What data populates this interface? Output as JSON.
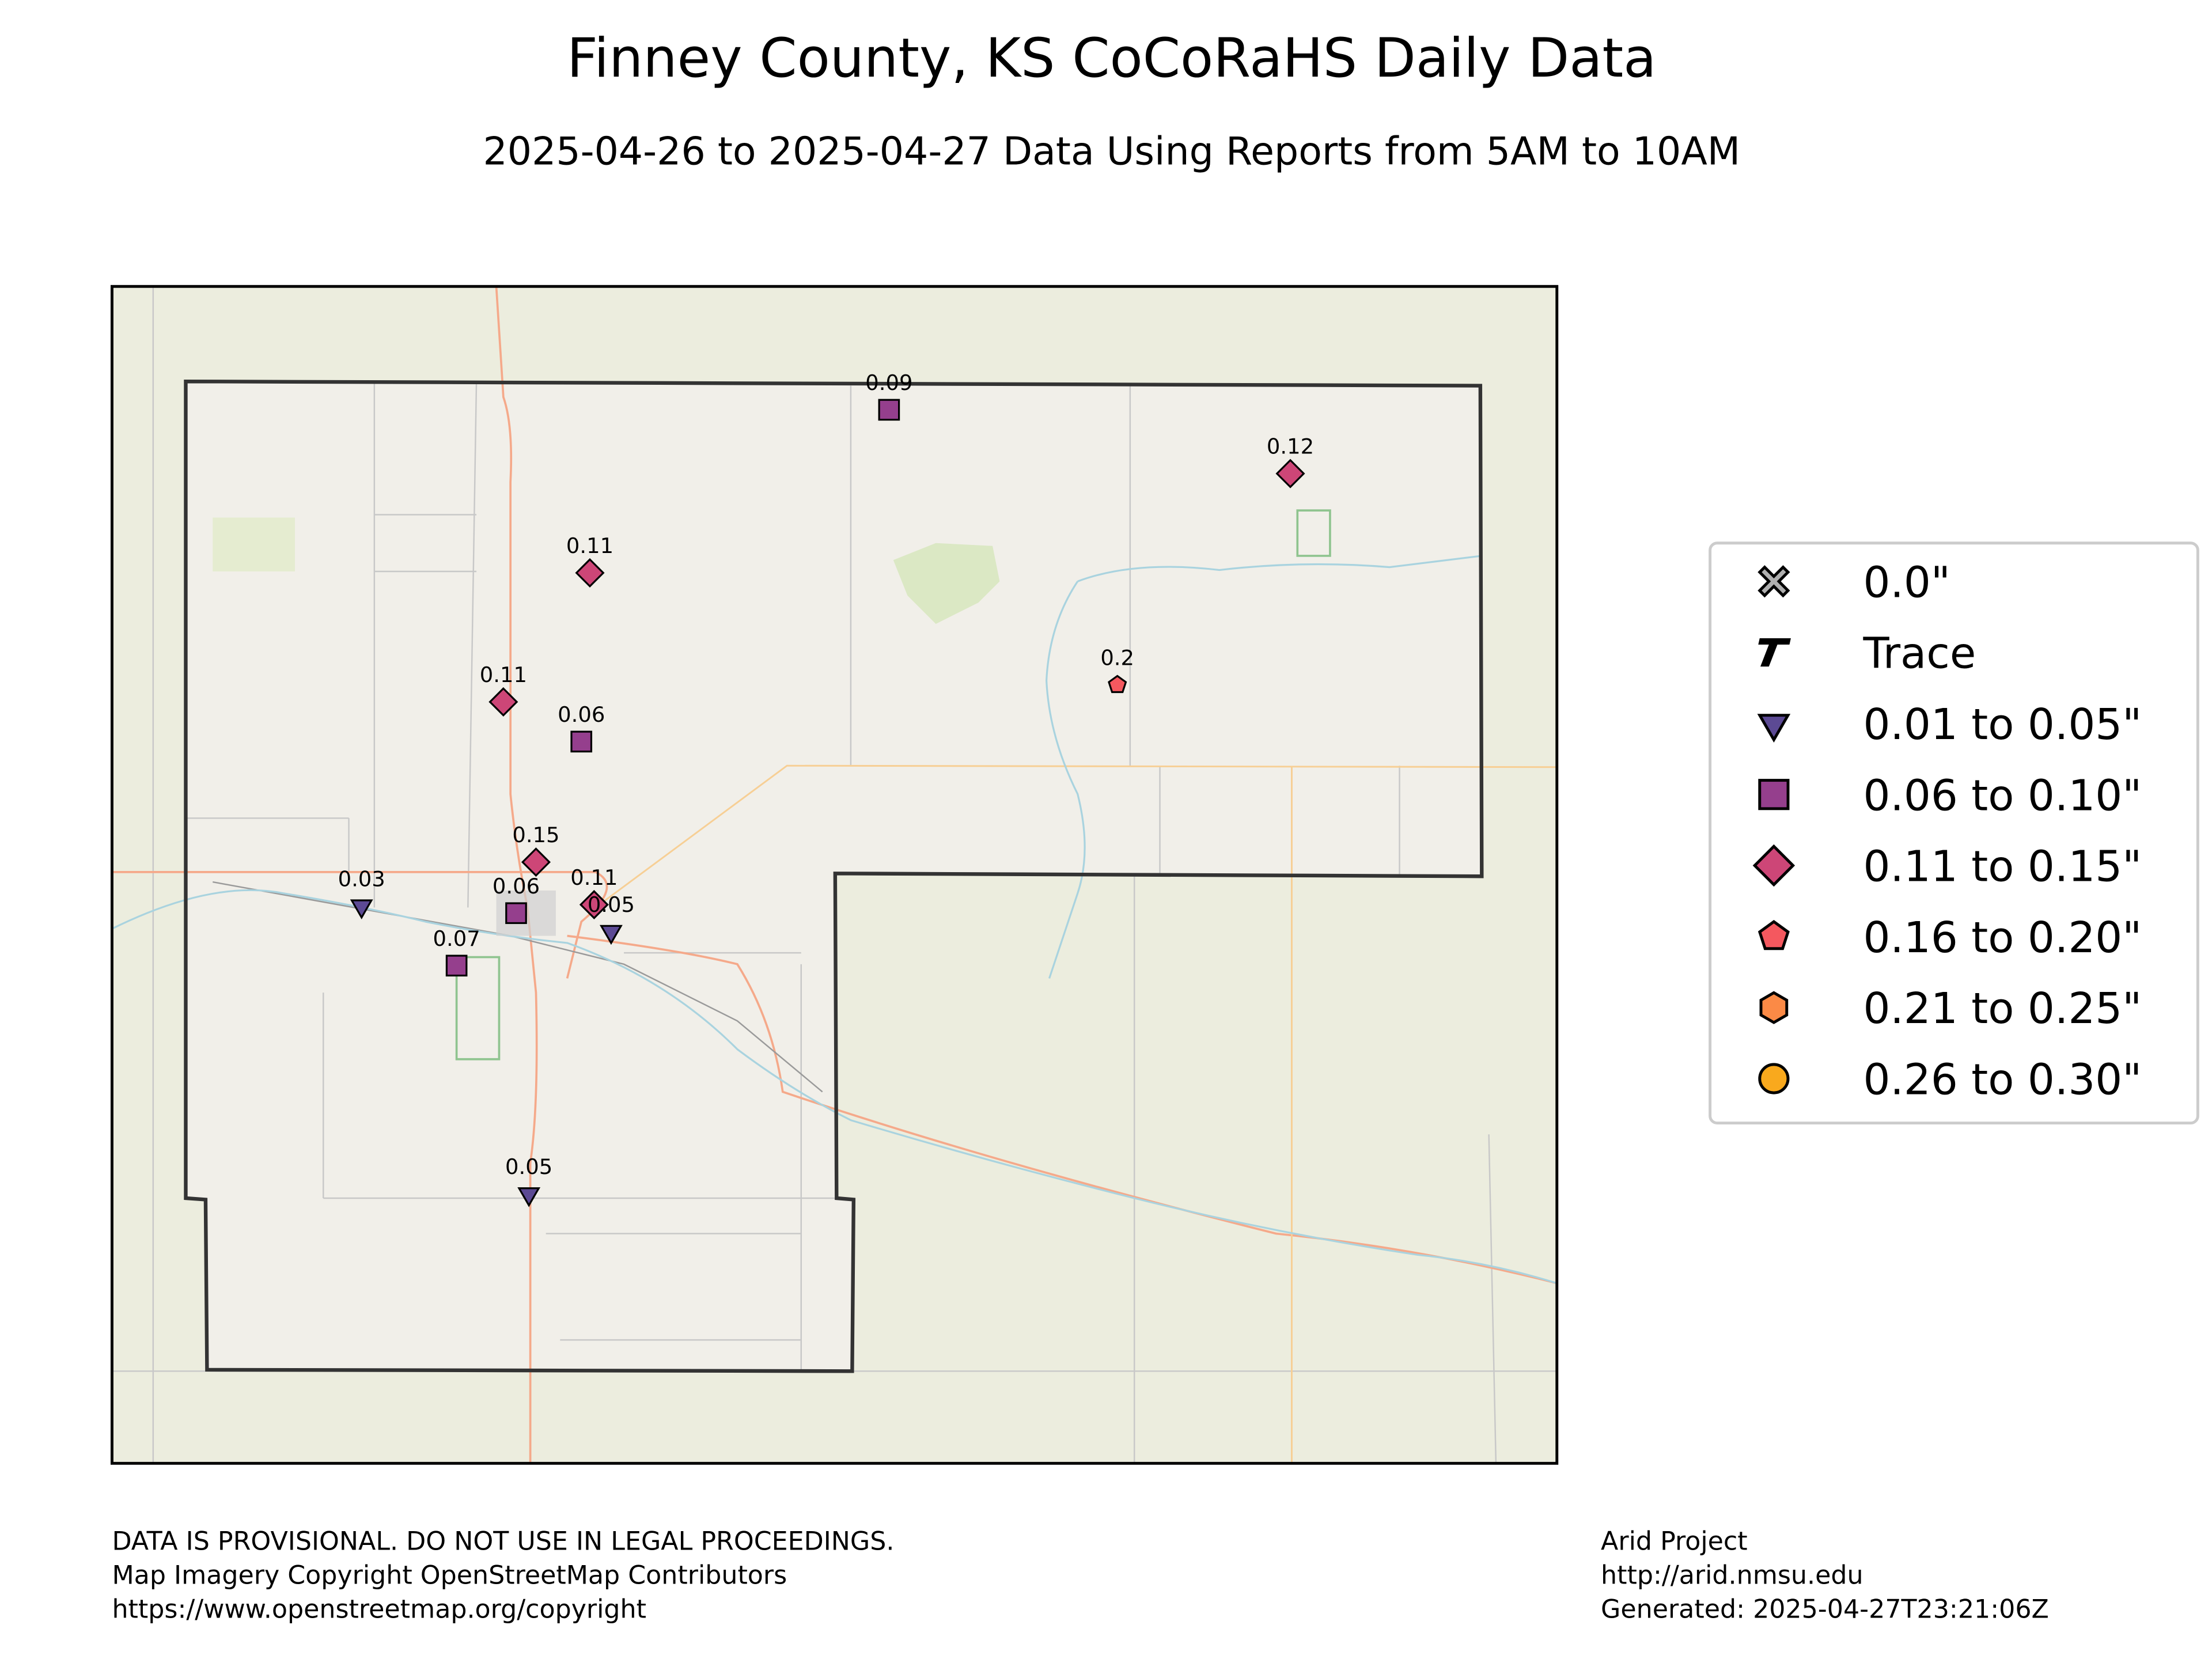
{
  "header": {
    "title": "Finney County, KS CoCoRaHS Daily Data",
    "subtitle": "2025-04-26 to 2025-04-27 Data Using Reports from 5AM to 10AM"
  },
  "map": {
    "stations": [
      {
        "value": 0.09,
        "symbol": "square"
      },
      {
        "value": 0.12,
        "symbol": "diamond"
      },
      {
        "value": 0.11,
        "symbol": "diamond"
      },
      {
        "value": 0.2,
        "symbol": "pentagon"
      },
      {
        "value": 0.11,
        "symbol": "diamond"
      },
      {
        "value": 0.06,
        "symbol": "square"
      },
      {
        "value": 0.15,
        "symbol": "diamond"
      },
      {
        "value": 0.03,
        "symbol": "triangle"
      },
      {
        "value": 0.06,
        "symbol": "square"
      },
      {
        "value": 0.11,
        "symbol": "diamond"
      },
      {
        "value": 0.05,
        "symbol": "triangle"
      },
      {
        "value": 0.07,
        "symbol": "square"
      },
      {
        "value": 0.05,
        "symbol": "triangle"
      }
    ]
  },
  "legend": {
    "entries": [
      {
        "label": "0.0\"",
        "symbol": "cross",
        "color": "#b0b0b0"
      },
      {
        "label": "Trace",
        "symbol": "trace",
        "color": "#000000"
      },
      {
        "label": "0.01 to 0.05\"",
        "symbol": "triangle",
        "color": "#5c4a94"
      },
      {
        "label": "0.06 to 0.10\"",
        "symbol": "square",
        "color": "#953f8d"
      },
      {
        "label": "0.11 to 0.15\"",
        "symbol": "diamond",
        "color": "#cd4677"
      },
      {
        "label": "0.16 to 0.20\"",
        "symbol": "pentagon",
        "color": "#f4585f"
      },
      {
        "label": "0.21 to 0.25\"",
        "symbol": "hexagon",
        "color": "#fb8a46"
      },
      {
        "label": "0.26 to 0.30\"",
        "symbol": "circle",
        "color": "#f9a91d"
      }
    ]
  },
  "footer": {
    "left": [
      "DATA IS PROVISIONAL. DO NOT USE IN LEGAL PROCEEDINGS.",
      "Map Imagery Copyright OpenStreetMap Contributors",
      "https://www.openstreetmap.org/copyright"
    ],
    "right": [
      "Arid Project",
      "http://arid.nmsu.edu",
      "Generated: 2025-04-27T23:21:06Z"
    ]
  }
}
